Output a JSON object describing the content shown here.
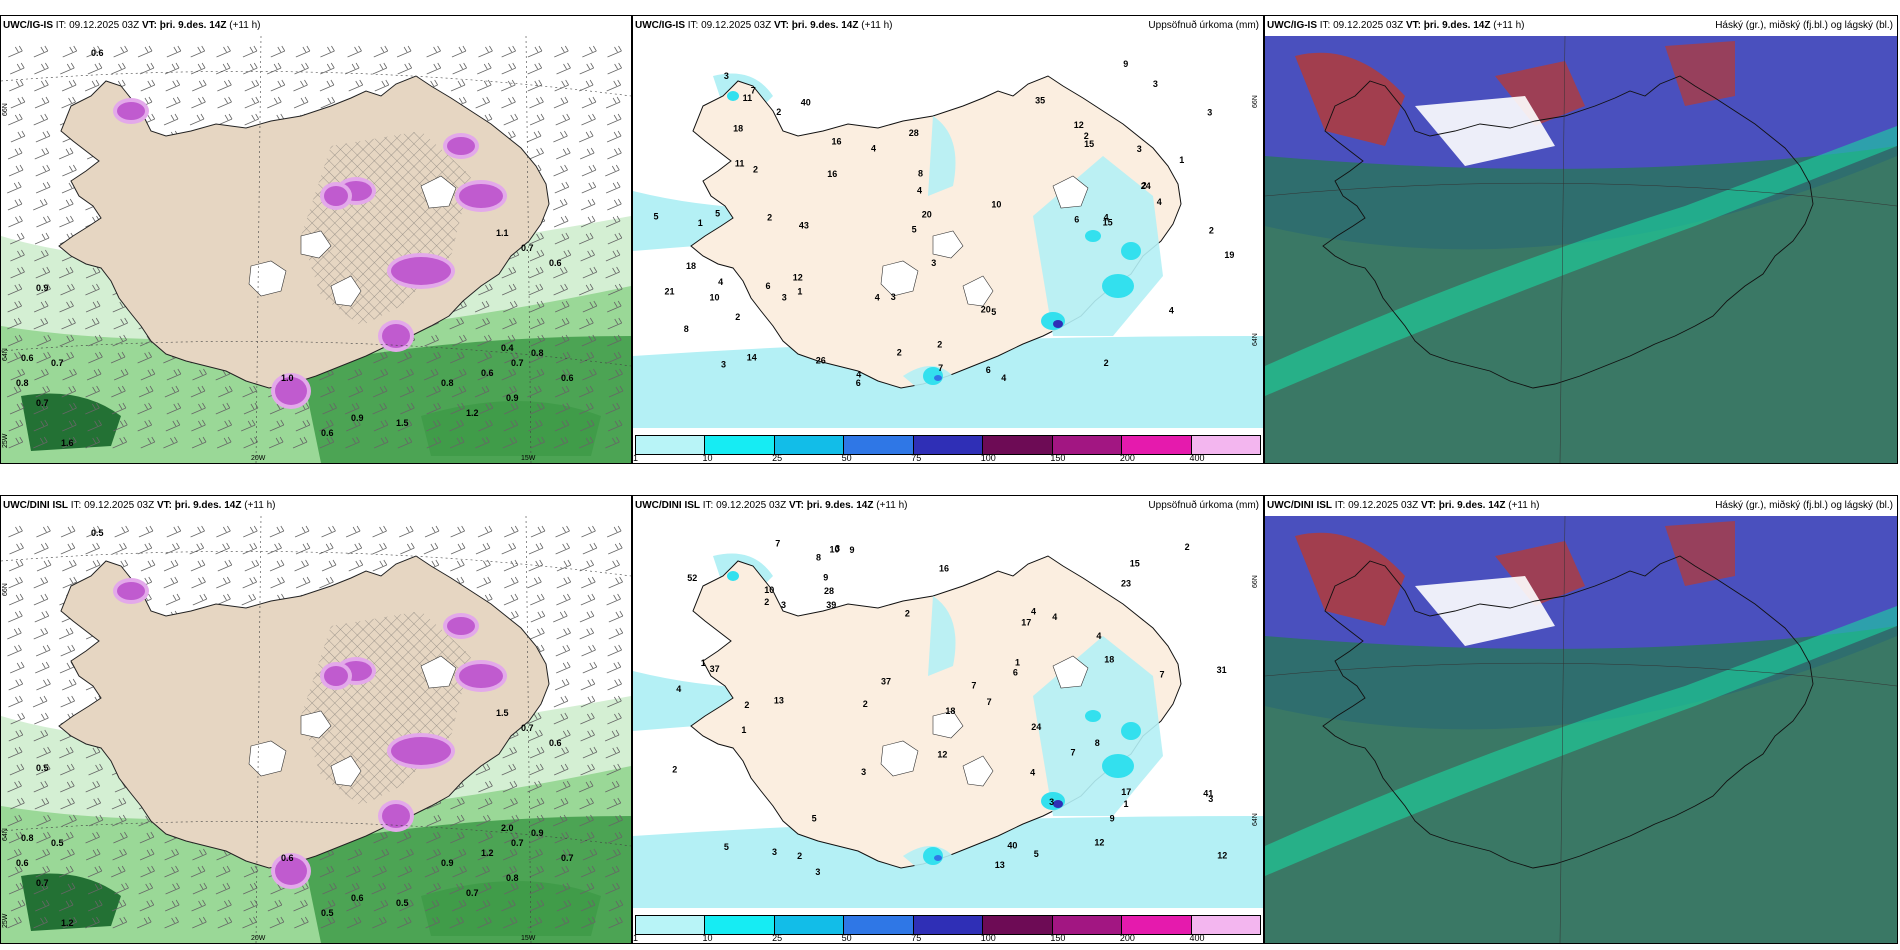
{
  "colors": {
    "land": "#e6d6c2",
    "land_light": "#fbeee0",
    "sea": "#ffffff",
    "precip_light": "#b4f0f5",
    "precip_mid": "#33e0ee",
    "green_1": "#cdeccb",
    "green_2": "#8fd38c",
    "green_3": "#3e9b48",
    "green_4": "#0e5f22",
    "magenta": "#c05bcf",
    "cloud_high": "#b23b3b",
    "cloud_mid": "#4e4dc6",
    "cloud_low": "#2f6e6e"
  },
  "axis_labels": {
    "lat66": "66N",
    "lat64": "64N",
    "lon20": "20W",
    "lon15": "15W",
    "lon25": "25W"
  },
  "colorbar": {
    "ticks": [
      "1",
      "10",
      "25",
      "50",
      "75",
      "100",
      "150",
      "200",
      "400"
    ],
    "colors": [
      "#b8f4f7",
      "#16ecf3",
      "#12bde8",
      "#2f77e6",
      "#2f2fb6",
      "#6d0b55",
      "#a21682",
      "#e51aad",
      "#f3b6ef"
    ]
  },
  "panels": [
    {
      "id": "p1",
      "model": "UWC/IG-IS",
      "it_label": "IT:",
      "it_value": "09.12.2025 03Z",
      "vt_label": "VT:",
      "vt_value": "þri. 9.des. 14Z",
      "offset": "(+11 h)",
      "right_title": "",
      "kind": "wind",
      "values": [
        "0.6",
        "0.9",
        "0.6",
        "0.7",
        "0.8",
        "0.7",
        "0.6",
        "0.9",
        "0.8",
        "0.6",
        "0.7",
        "0.8",
        "0.6",
        "1.6",
        "1.0",
        "0.9",
        "1.2",
        "0.4",
        "1.5",
        "0.7",
        "1.1",
        "0.6"
      ]
    },
    {
      "id": "p2",
      "model": "UWC/IG-IS",
      "it_label": "IT:",
      "it_value": "09.12.2025 03Z",
      "vt_label": "VT:",
      "vt_value": "þri. 9.des. 14Z",
      "offset": "(+11 h)",
      "right_title": "Uppsöfnuð úrkoma (mm)",
      "kind": "precip",
      "values": [
        "6",
        "2",
        "4",
        "3",
        "2",
        "4",
        "5",
        "6",
        "3",
        "2",
        "3",
        "2",
        "4",
        "1",
        "3",
        "3",
        "5",
        "8",
        "5",
        "10",
        "20",
        "18",
        "12",
        "15",
        "4",
        "4",
        "2",
        "2",
        "3",
        "3",
        "2",
        "7",
        "6",
        "12",
        "4",
        "16",
        "11",
        "18",
        "21",
        "20",
        "35",
        "24",
        "19",
        "43",
        "10",
        "8",
        "7",
        "3",
        "5",
        "2",
        "1",
        "14",
        "16",
        "9",
        "4",
        "2",
        "11",
        "4",
        "15",
        "6",
        "40",
        "26",
        "28",
        "4",
        "2",
        "1"
      ]
    },
    {
      "id": "p3",
      "model": "UWC/IG-IS",
      "it_label": "IT:",
      "it_value": "09.12.2025 03Z",
      "vt_label": "VT:",
      "vt_value": "þri. 9.des. 14Z",
      "offset": "(+11 h)",
      "right_title": "Háský (gr.), miðský (fj.bl.) og lágský (bl.)",
      "kind": "cloud",
      "values": []
    },
    {
      "id": "p4",
      "model": "UWC/DINI ISL",
      "it_label": "IT:",
      "it_value": "09.12.2025 03Z",
      "vt_label": "VT:",
      "vt_value": "þri. 9.des. 14Z",
      "offset": "(+11 h)",
      "right_title": "",
      "kind": "wind",
      "values": [
        "0.5",
        "0.5",
        "0.8",
        "0.5",
        "0.6",
        "0.7",
        "0.5",
        "0.6",
        "0.9",
        "1.2",
        "0.7",
        "0.9",
        "0.7",
        "1.2",
        "0.6",
        "0.8",
        "0.7",
        "2.0",
        "0.5",
        "0.7",
        "1.5",
        "0.6"
      ]
    },
    {
      "id": "p5",
      "model": "UWC/DINI ISL",
      "it_label": "IT:",
      "it_value": "09.12.2025 03Z",
      "vt_label": "VT:",
      "vt_value": "þri. 9.des. 14Z",
      "offset": "(+11 h)",
      "right_title": "Uppsöfnuð úrkoma (mm)",
      "kind": "precip",
      "values": [
        "2",
        "12",
        "18",
        "3",
        "2",
        "4",
        "1",
        "3",
        "1",
        "1",
        "3",
        "2",
        "4",
        "8",
        "7",
        "17",
        "15",
        "12",
        "9",
        "7",
        "3",
        "3",
        "2",
        "4",
        "7",
        "8",
        "5",
        "9",
        "10",
        "9",
        "18",
        "4",
        "1",
        "7",
        "5",
        "12",
        "23",
        "24",
        "39",
        "40",
        "31",
        "37",
        "28",
        "41",
        "13",
        "10",
        "2",
        "3",
        "17",
        "13",
        "6",
        "3",
        "2",
        "5",
        "16",
        "37",
        "52",
        "7",
        "2",
        "4"
      ]
    },
    {
      "id": "p6",
      "model": "UWC/DINI ISL",
      "it_label": "IT:",
      "it_value": "09.12.2025 03Z",
      "vt_label": "VT:",
      "vt_value": "þri. 9.des. 14Z",
      "offset": "(+11 h)",
      "right_title": "Háský (gr.), miðský (fj.bl.) og lágský (bl.)",
      "kind": "cloud",
      "values": []
    }
  ]
}
